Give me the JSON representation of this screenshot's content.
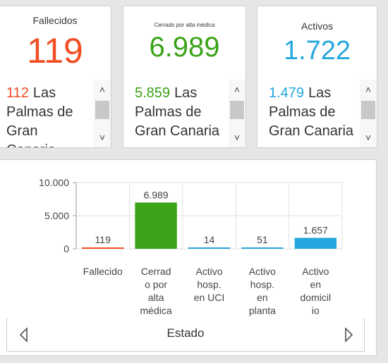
{
  "cards": [
    {
      "title": "Fallecidos",
      "value": "119",
      "color": "#f04e23",
      "detail_value": "112",
      "detail_text": "Las Palmas de Gran Canaria"
    },
    {
      "title": "Cerrado por alta médica",
      "value": "6.989",
      "color": "#3aa317",
      "detail_value": "5.859",
      "detail_text": "Las Palmas de Gran Canaria"
    },
    {
      "title": "Activos",
      "value": "1.722",
      "color": "#24a7de",
      "detail_value": "1.479",
      "detail_text": "Las Palmas de Gran Canaria"
    }
  ],
  "scroll_icons": {
    "up": "chevron-up-icon",
    "down": "chevron-down-icon"
  },
  "nav_icons": {
    "prev": "triangle-left-icon",
    "next": "triangle-right-icon"
  },
  "chart_data": {
    "type": "bar",
    "xlabel": "Estado",
    "ylabel": "",
    "ylim": [
      0,
      10000
    ],
    "y_ticks": [
      0,
      5000,
      10000
    ],
    "y_tick_labels": [
      "0",
      "5.000",
      "10.000"
    ],
    "grid": true,
    "categories": [
      "Fallecido",
      "Cerrado por alta médica",
      "Activo hosp. en UCI",
      "Activo hosp. en planta",
      "Activo en domicilio"
    ],
    "category_lines": [
      [
        "Fallecido"
      ],
      [
        "Cerrad",
        "o por",
        "alta",
        "médica"
      ],
      [
        "Activo",
        "hosp.",
        "en UCI"
      ],
      [
        "Activo",
        "hosp.",
        "en",
        "planta"
      ],
      [
        "Activo",
        "en",
        "domicil",
        "io"
      ]
    ],
    "values": [
      119,
      6989,
      14,
      51,
      1657
    ],
    "value_labels": [
      "119",
      "6.989",
      "14",
      "51",
      "1.657"
    ],
    "colors": [
      "#f04e23",
      "#3aa317",
      "#24a7de",
      "#24a7de",
      "#24a7de"
    ]
  }
}
